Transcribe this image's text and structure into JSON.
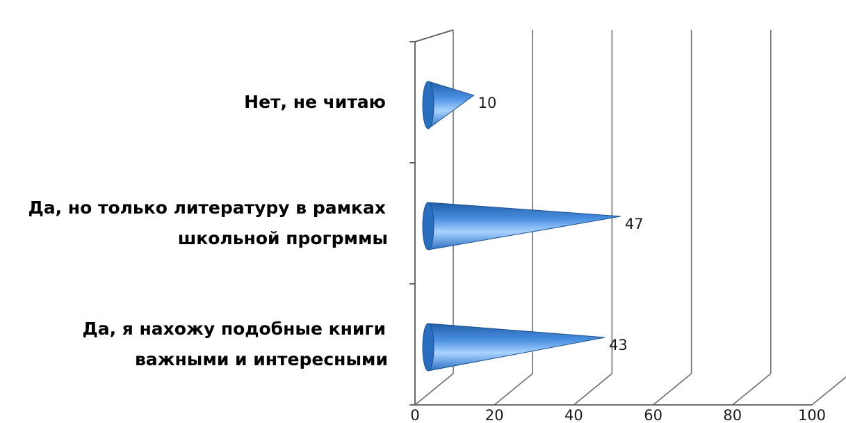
{
  "chart_data": {
    "type": "bar",
    "orientation": "horizontal",
    "style": "3d-cone",
    "categories": [
      [
        "Нет, не читаю"
      ],
      [
        "Да, но только литературу в рамках",
        "школьной прогрммы"
      ],
      [
        "Да, я нахожу подобные книги",
        "важными и интересными"
      ]
    ],
    "values": [
      10,
      47,
      43
    ],
    "value_labels": [
      "10",
      "47",
      "43"
    ],
    "xlim": [
      0,
      100
    ],
    "xticks": [
      "0",
      "20",
      "40",
      "60",
      "80",
      "100"
    ],
    "grid": true,
    "legend": "none",
    "colors": {
      "cone_dark": "#1f5fa8",
      "cone_mid": "#4a90e2",
      "cone_light": "#a9d2ff",
      "grid": "#6e6e6e",
      "text": "#000000"
    }
  }
}
